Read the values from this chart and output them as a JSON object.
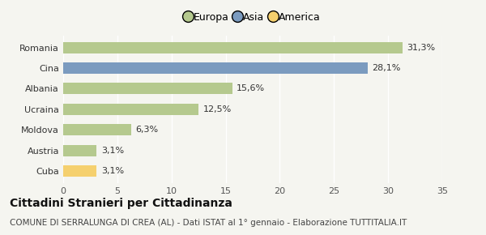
{
  "categories": [
    "Romania",
    "Cina",
    "Albania",
    "Ucraina",
    "Moldova",
    "Austria",
    "Cuba"
  ],
  "values": [
    31.3,
    28.1,
    15.6,
    12.5,
    6.3,
    3.1,
    3.1
  ],
  "labels": [
    "31,3%",
    "28,1%",
    "15,6%",
    "12,5%",
    "6,3%",
    "3,1%",
    "3,1%"
  ],
  "colors": [
    "#b5c98e",
    "#7b9bbf",
    "#b5c98e",
    "#b5c98e",
    "#b5c98e",
    "#b5c98e",
    "#f5d06e"
  ],
  "legend_labels": [
    "Europa",
    "Asia",
    "America"
  ],
  "legend_colors": [
    "#b5c98e",
    "#7b9bbf",
    "#f5d06e"
  ],
  "xlim": [
    0,
    35
  ],
  "xticks": [
    0,
    5,
    10,
    15,
    20,
    25,
    30,
    35
  ],
  "title": "Cittadini Stranieri per Cittadinanza",
  "subtitle": "COMUNE DI SERRALUNGA DI CREA (AL) - Dati ISTAT al 1° gennaio - Elaborazione TUTTITALIA.IT",
  "bg_color": "#f5f5f0",
  "grid_color": "#ffffff",
  "title_fontsize": 10,
  "subtitle_fontsize": 7.5,
  "label_fontsize": 8,
  "tick_fontsize": 8,
  "legend_fontsize": 9
}
